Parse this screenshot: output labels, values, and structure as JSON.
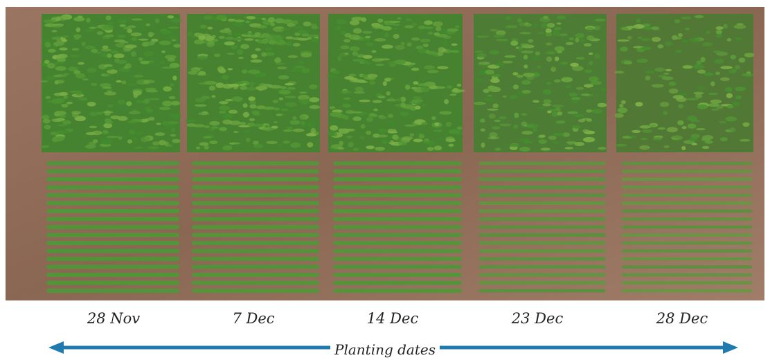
{
  "photo": {
    "soil_color": "#8d6a55",
    "plant_colors": {
      "top_dense": "#3f8a2c",
      "top_light": "#7fb148",
      "bottom_dense": "#3e8a31",
      "bottom_light": "#7aab4a"
    }
  },
  "planting_dates": [
    "28 Nov",
    "7 Dec",
    "14 Dec",
    "23 Dec",
    "28 Dec"
  ],
  "axis_label": "Planting dates",
  "arrow_color": "#1f7ab0"
}
